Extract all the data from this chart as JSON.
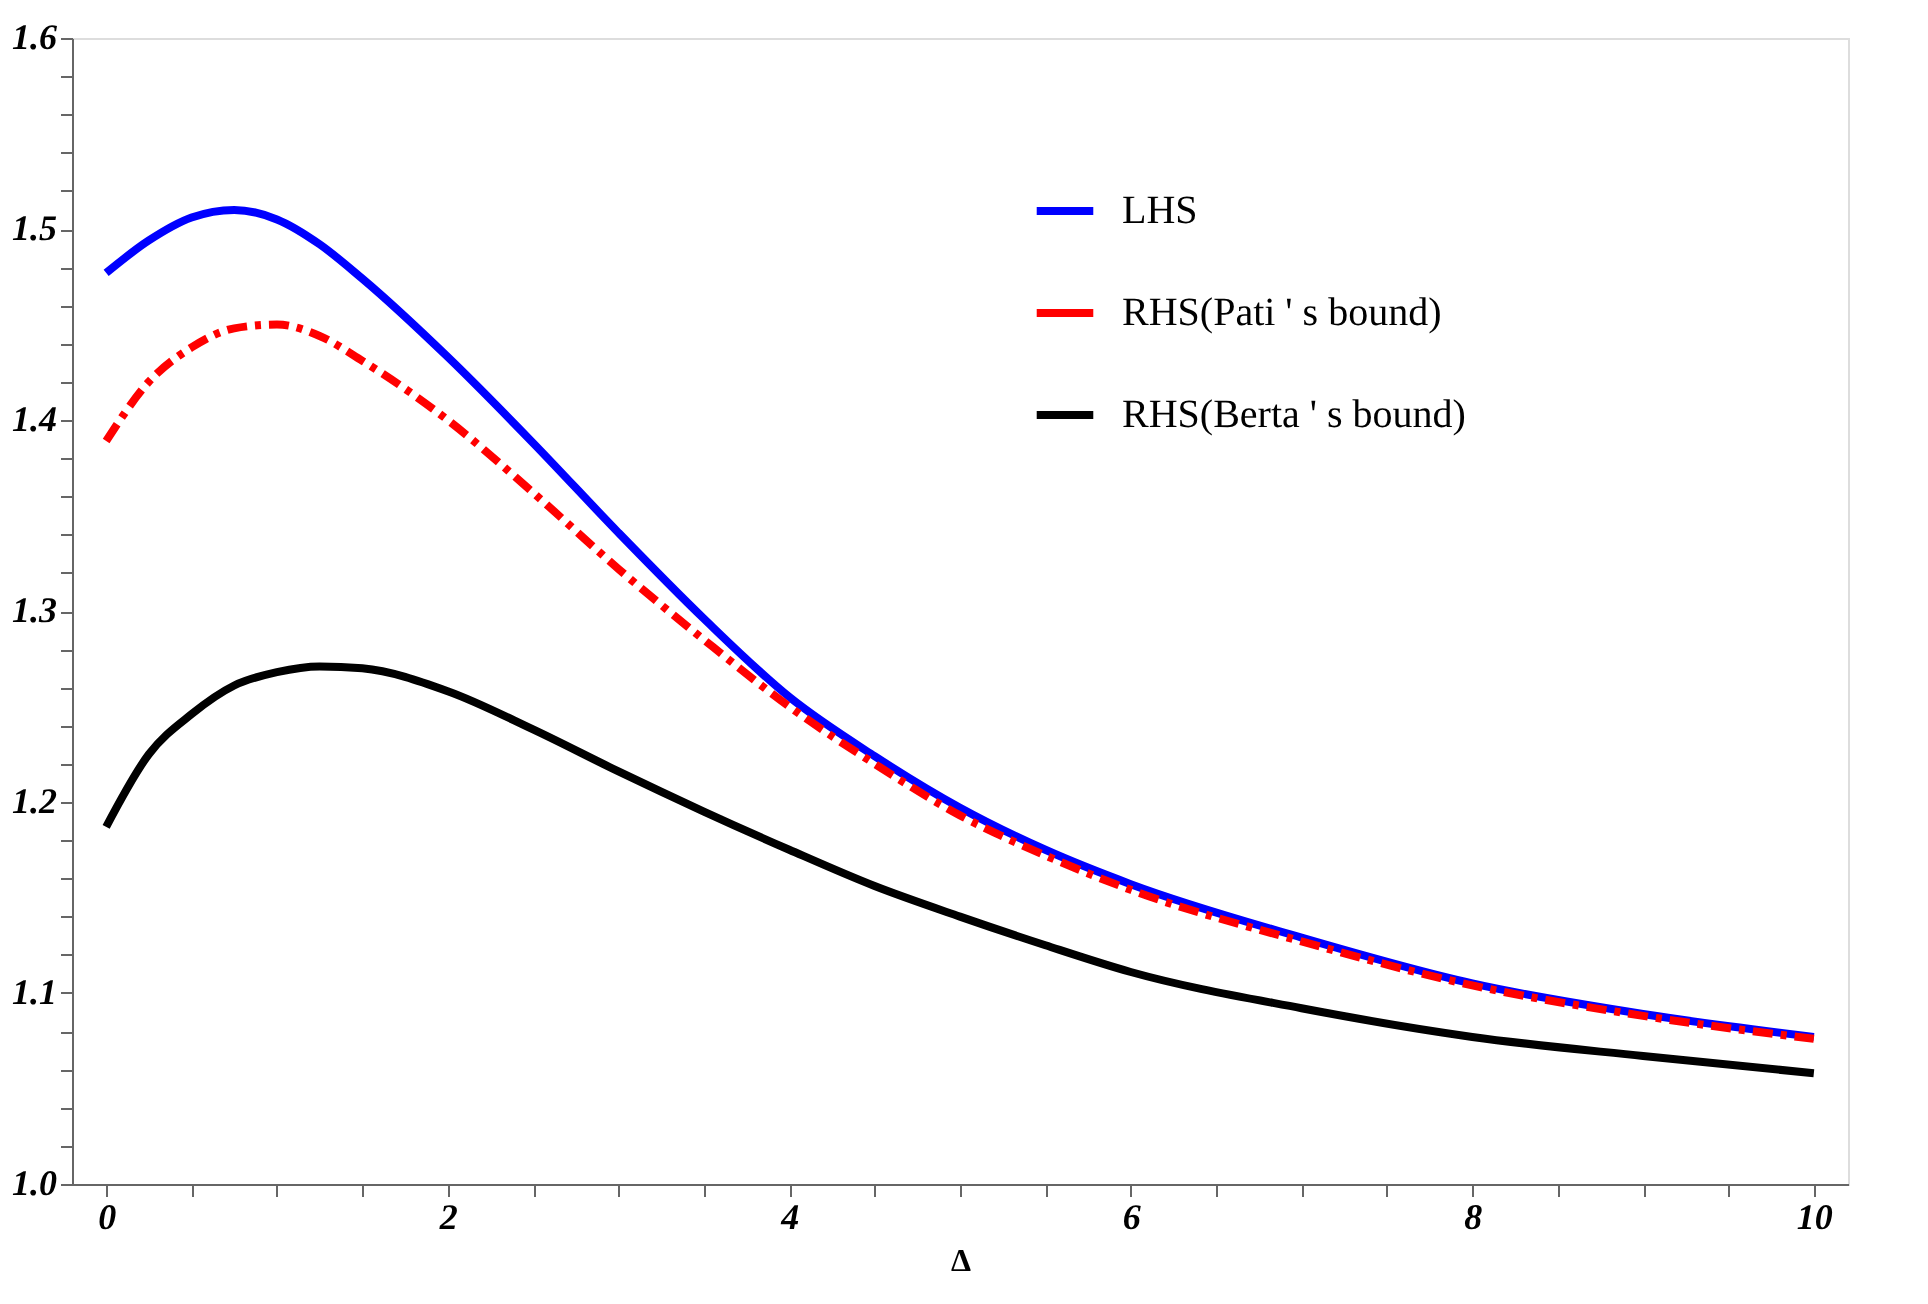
{
  "chart_data": {
    "type": "line",
    "xlabel": "Δ",
    "x": [
      0,
      0.25,
      0.5,
      0.75,
      1,
      1.25,
      1.5,
      2,
      2.5,
      3,
      3.5,
      4,
      4.5,
      5,
      5.5,
      6,
      7,
      8,
      9,
      10
    ],
    "series": [
      {
        "name": "LHS",
        "color": "#0000ff",
        "line_style": "solid",
        "values": [
          1.477,
          1.494,
          1.506,
          1.51,
          1.505,
          1.492,
          1.474,
          1.433,
          1.388,
          1.341,
          1.296,
          1.255,
          1.224,
          1.197,
          1.175,
          1.157,
          1.129,
          1.105,
          1.089,
          1.077
        ]
      },
      {
        "name": "RHS(Pati ' s bound)",
        "color": "#ff0000",
        "line_style": "dashed",
        "values": [
          1.389,
          1.42,
          1.438,
          1.448,
          1.45,
          1.444,
          1.431,
          1.4,
          1.362,
          1.322,
          1.285,
          1.25,
          1.22,
          1.193,
          1.172,
          1.154,
          1.127,
          1.104,
          1.088,
          1.076
        ]
      },
      {
        "name": "RHS(Berta ' s bound)",
        "color": "#000000",
        "line_style": "solid",
        "values": [
          1.187,
          1.225,
          1.246,
          1.261,
          1.268,
          1.271,
          1.27,
          1.258,
          1.238,
          1.216,
          1.195,
          1.175,
          1.156,
          1.14,
          1.125,
          1.111,
          1.092,
          1.077,
          1.067,
          1.058
        ]
      }
    ],
    "xlim": [
      -0.2,
      10.2
    ],
    "ylim": [
      1.0,
      1.6
    ],
    "xticks": [
      0,
      {
        "value": 0.5,
        "label": null
      },
      {
        "value": 1,
        "label": null
      },
      {
        "value": 1.5,
        "label": null
      },
      2,
      {
        "value": 2.5,
        "label": null
      },
      {
        "value": 3,
        "label": null
      },
      {
        "value": 3.5,
        "label": null
      },
      4,
      {
        "value": 4.5,
        "label": null
      },
      {
        "value": 5,
        "label": null
      },
      {
        "value": 5.5,
        "label": null
      },
      6,
      {
        "value": 6.5,
        "label": null
      },
      {
        "value": 7,
        "label": null
      },
      {
        "value": 7.5,
        "label": null
      },
      8,
      {
        "value": 8.5,
        "label": null
      },
      {
        "value": 9,
        "label": null
      },
      {
        "value": 9.5,
        "label": null
      },
      10
    ],
    "yticks": [
      {
        "value": 1.0,
        "label": "1.0"
      },
      {
        "value": 1.02,
        "label": null
      },
      {
        "value": 1.04,
        "label": null
      },
      {
        "value": 1.06,
        "label": null
      },
      {
        "value": 1.08,
        "label": null
      },
      1.1,
      {
        "value": 1.12,
        "label": null
      },
      {
        "value": 1.14,
        "label": null
      },
      {
        "value": 1.16,
        "label": null
      },
      {
        "value": 1.18,
        "label": null
      },
      1.2,
      {
        "value": 1.22,
        "label": null
      },
      {
        "value": 1.24,
        "label": null
      },
      {
        "value": 1.26,
        "label": null
      },
      {
        "value": 1.28,
        "label": null
      },
      1.3,
      {
        "value": 1.32,
        "label": null
      },
      {
        "value": 1.34,
        "label": null
      },
      {
        "value": 1.36,
        "label": null
      },
      {
        "value": 1.38,
        "label": null
      },
      1.4,
      {
        "value": 1.42,
        "label": null
      },
      {
        "value": 1.44,
        "label": null
      },
      {
        "value": 1.46,
        "label": null
      },
      {
        "value": 1.48,
        "label": null
      },
      1.5,
      {
        "value": 1.52,
        "label": null
      },
      {
        "value": 1.54,
        "label": null
      },
      {
        "value": 1.56,
        "label": null
      },
      {
        "value": 1.58,
        "label": null
      },
      1.6
    ],
    "grid": false,
    "legend": "top right",
    "marker": "none"
  }
}
